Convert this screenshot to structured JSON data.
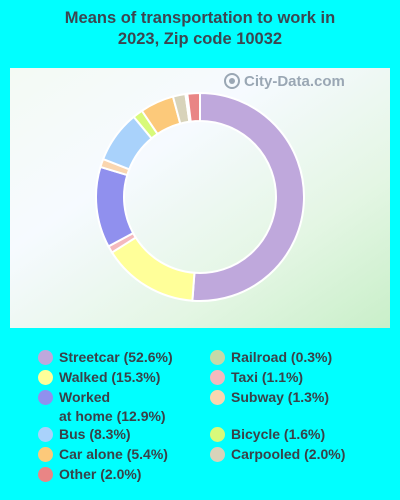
{
  "title": "Means of transportation to work in\n2023, Zip code 10032",
  "watermark": "City-Data.com",
  "chart_data": {
    "type": "pie",
    "style": "donut",
    "title": "Means of transportation to work in 2023, Zip code 10032",
    "slices": [
      {
        "label": "Streetcar",
        "value": 52.6,
        "legend": "Streetcar (52.6%)",
        "color": "#bfa8dc"
      },
      {
        "label": "Walked",
        "value": 15.3,
        "legend": "Walked (15.3%)",
        "color": "#ffff99"
      },
      {
        "label": "Taxi",
        "value": 1.1,
        "legend": "Taxi (1.1%)",
        "color": "#f4b9bd"
      },
      {
        "label": "Worked at home",
        "value": 12.9,
        "legend": "Worked\nat home (12.9%)",
        "color": "#9090ee"
      },
      {
        "label": "Subway",
        "value": 1.3,
        "legend": "Subway (1.3%)",
        "color": "#fad6b0"
      },
      {
        "label": "Bus",
        "value": 8.3,
        "legend": "Bus (8.3%)",
        "color": "#a9d2fb"
      },
      {
        "label": "Bicycle",
        "value": 1.6,
        "legend": "Bicycle (1.6%)",
        "color": "#d8fa7a"
      },
      {
        "label": "Car alone",
        "value": 5.4,
        "legend": "Car alone (5.4%)",
        "color": "#fcc97a"
      },
      {
        "label": "Carpooled",
        "value": 2.0,
        "legend": "Carpooled (2.0%)",
        "color": "#d8d3ba"
      },
      {
        "label": "Railroad",
        "value": 0.3,
        "legend": "Railroad (0.3%)",
        "color": "#c6d9a8"
      },
      {
        "label": "Other",
        "value": 2.0,
        "legend": "Other (2.0%)",
        "color": "#e98585"
      }
    ],
    "legend_order": [
      "Streetcar",
      "Walked",
      "Worked at home",
      "Bus",
      "Car alone",
      "Other",
      "Railroad",
      "Taxi",
      "Subway",
      "Bicycle",
      "Carpooled"
    ]
  }
}
